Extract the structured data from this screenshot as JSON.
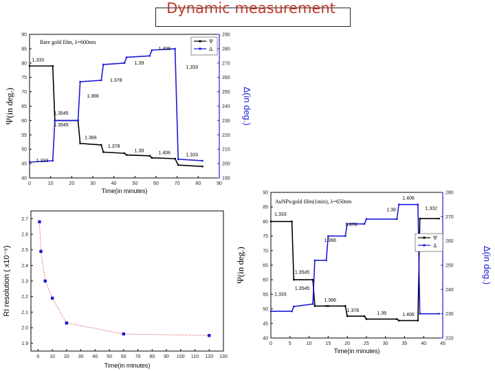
{
  "slide": {
    "title": "Dynamic measurement"
  },
  "chart_data": [
    {
      "id": "bare_gold",
      "type": "line",
      "title": "Bare gold film, λ=600nm",
      "xlabel": "Time(in minutes)",
      "ylabel": "Ψ(in deg.)",
      "y2label": "Δ(in deg.)",
      "xlim": [
        0,
        90
      ],
      "ylim": [
        40,
        90
      ],
      "y2lim": [
        190,
        290
      ],
      "xticks": [
        "0",
        "10",
        "20",
        "30",
        "40",
        "50",
        "60",
        "70",
        "80",
        "90"
      ],
      "yticks": [
        "40",
        "45",
        "50",
        "55",
        "60",
        "65",
        "70",
        "75",
        "80",
        "85",
        "90"
      ],
      "y2ticks": [
        "190",
        "200",
        "210",
        "220",
        "230",
        "240",
        "250",
        "260",
        "270",
        "280",
        "290"
      ],
      "legend": [
        "Ψ",
        "Δ"
      ],
      "colors": {
        "psi": "#000000",
        "delta": "#1a1ad6"
      },
      "series": [
        {
          "name": "Ψ",
          "axis": "left",
          "points": [
            [
              0,
              79
            ],
            [
              11,
              79
            ],
            [
              12,
              60
            ],
            [
              23,
              60
            ],
            [
              24,
              52
            ],
            [
              34,
              51.5
            ],
            [
              35,
              49
            ],
            [
              45,
              48.6
            ],
            [
              46,
              48
            ],
            [
              57,
              47.7
            ],
            [
              58,
              47
            ],
            [
              69,
              46.7
            ],
            [
              70.5,
              44.5
            ],
            [
              82,
              44
            ]
          ]
        },
        {
          "name": "Δ",
          "axis": "right",
          "points": [
            [
              0,
              201
            ],
            [
              11,
              202
            ],
            [
              12,
              230
            ],
            [
              23,
              230
            ],
            [
              24,
              257
            ],
            [
              34,
              258
            ],
            [
              35,
              269
            ],
            [
              45,
              270
            ],
            [
              46,
              274
            ],
            [
              57,
              275
            ],
            [
              58,
              279
            ],
            [
              69,
              280
            ],
            [
              70.5,
              203
            ],
            [
              82,
              202
            ]
          ]
        }
      ],
      "annotations": [
        {
          "text": "1.333",
          "x": 4,
          "y": 80.5,
          "axis": "left"
        },
        {
          "text": "1.3545",
          "x": 15,
          "y": 62,
          "axis": "left"
        },
        {
          "text": "1.3545",
          "x": 15,
          "y": 58,
          "axis": "left"
        },
        {
          "text": "1.366",
          "x": 30,
          "y": 68,
          "axis": "left"
        },
        {
          "text": "1.378",
          "x": 41,
          "y": 73.5,
          "axis": "left"
        },
        {
          "text": "1.39",
          "x": 52,
          "y": 79.5,
          "axis": "left"
        },
        {
          "text": "1.406",
          "x": 64,
          "y": 84.5,
          "axis": "left"
        },
        {
          "text": "1.333",
          "x": 77,
          "y": 78,
          "axis": "left"
        },
        {
          "text": "1.333",
          "x": 6,
          "y": 45.5,
          "axis": "left"
        },
        {
          "text": "1.366",
          "x": 29,
          "y": 53.5,
          "axis": "left"
        },
        {
          "text": "1.378",
          "x": 40,
          "y": 50.5,
          "axis": "left"
        },
        {
          "text": "1.39",
          "x": 52,
          "y": 49,
          "axis": "left"
        },
        {
          "text": "1.406",
          "x": 64,
          "y": 48.2,
          "axis": "left"
        },
        {
          "text": "1.333",
          "x": 77,
          "y": 47.5,
          "axis": "left"
        }
      ]
    },
    {
      "id": "ri_resolution",
      "type": "scatter",
      "title": "",
      "xlabel": "Time(in minutes)",
      "ylabel": "RI resolution ( x10⁻⁶)",
      "xlim": [
        -5,
        130
      ],
      "ylim": [
        1.85,
        2.75
      ],
      "xticks": [
        "0",
        "10",
        "20",
        "30",
        "40",
        "50",
        "60",
        "70",
        "80",
        "90",
        "100",
        "110",
        "120",
        "130"
      ],
      "yticks": [
        "1.9",
        "2.0",
        "2.1",
        "2.2",
        "2.3",
        "2.4",
        "2.5",
        "2.6",
        "2.7"
      ],
      "colors": {
        "marker": "#1a1ad6",
        "line": "#e05050"
      },
      "x": [
        1,
        2,
        5,
        10,
        20,
        60,
        120
      ],
      "values": [
        2.68,
        2.49,
        2.3,
        2.19,
        2.03,
        1.96,
        1.95
      ]
    },
    {
      "id": "aunps_gold",
      "type": "line",
      "title": "AuNPs/gold film(1min), λ=650nm",
      "xlabel": "Time(in minutes)",
      "ylabel": "Ψ(in deg.)",
      "y2label": "Δ(in deg.)",
      "xlim": [
        0,
        45
      ],
      "ylim": [
        40,
        90
      ],
      "y2lim": [
        220,
        280
      ],
      "xticks": [
        "0",
        "5",
        "10",
        "15",
        "20",
        "25",
        "30",
        "35",
        "40",
        "45"
      ],
      "yticks": [
        "40",
        "45",
        "50",
        "55",
        "60",
        "65",
        "70",
        "75",
        "80",
        "85",
        "90"
      ],
      "y2ticks": [
        "220",
        "230",
        "240",
        "250",
        "260",
        "270",
        "280"
      ],
      "legend": [
        "Ψ",
        "Δ"
      ],
      "colors": {
        "psi": "#000000",
        "delta": "#1a1ad6"
      },
      "series": [
        {
          "name": "Ψ",
          "axis": "left",
          "points": [
            [
              0,
              80
            ],
            [
              5.5,
              80
            ],
            [
              6,
              60
            ],
            [
              11,
              60
            ],
            [
              11.5,
              51
            ],
            [
              14.5,
              51
            ],
            [
              15,
              51
            ],
            [
              19.5,
              51
            ],
            [
              20,
              47.5
            ],
            [
              24.5,
              47.5
            ],
            [
              25,
              46.5
            ],
            [
              33,
              46.5
            ],
            [
              33.5,
              46
            ],
            [
              38.5,
              46
            ],
            [
              39,
              81
            ],
            [
              44,
              81
            ]
          ]
        },
        {
          "name": "Δ",
          "axis": "right",
          "points": [
            [
              0,
              231
            ],
            [
              5.5,
              231
            ],
            [
              6,
              233
            ],
            [
              11,
              234
            ],
            [
              11.5,
              252
            ],
            [
              14.5,
              252
            ],
            [
              15,
              262
            ],
            [
              19.5,
              262
            ],
            [
              20,
              267
            ],
            [
              24.5,
              267
            ],
            [
              25,
              269
            ],
            [
              33,
              269
            ],
            [
              33.5,
              275
            ],
            [
              38.5,
              275
            ],
            [
              39,
              230
            ],
            [
              44,
              230
            ]
          ]
        }
      ],
      "annotations": [
        {
          "text": "1.333",
          "x": 2.5,
          "y": 82,
          "axis": "left"
        },
        {
          "text": "1.3545",
          "x": 8.2,
          "y": 62,
          "axis": "left"
        },
        {
          "text": "1.3545",
          "x": 8.2,
          "y": 56.5,
          "axis": "left"
        },
        {
          "text": "1.366",
          "x": 15.5,
          "y": 73,
          "axis": "left"
        },
        {
          "text": "1.378",
          "x": 21,
          "y": 78.5,
          "axis": "left"
        },
        {
          "text": "1.39",
          "x": 31.5,
          "y": 83.5,
          "axis": "left"
        },
        {
          "text": "1.406",
          "x": 36,
          "y": 87.5,
          "axis": "left"
        },
        {
          "text": "1.332",
          "x": 42,
          "y": 84,
          "axis": "left"
        },
        {
          "text": "1.333",
          "x": 2.5,
          "y": 54.5,
          "axis": "left"
        },
        {
          "text": "1.366",
          "x": 15.5,
          "y": 52.5,
          "axis": "left"
        },
        {
          "text": "1.378",
          "x": 21.5,
          "y": 49,
          "axis": "left"
        },
        {
          "text": "1.39",
          "x": 29,
          "y": 48,
          "axis": "left"
        },
        {
          "text": "1.406",
          "x": 36,
          "y": 47.5,
          "axis": "left"
        }
      ]
    }
  ]
}
